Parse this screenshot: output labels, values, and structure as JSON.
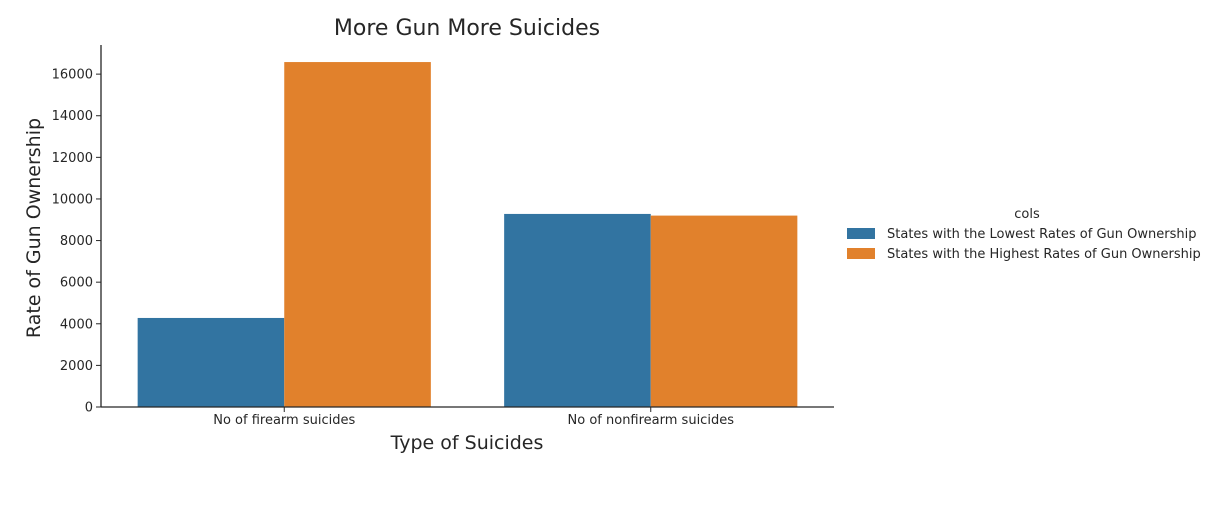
{
  "chart_data": {
    "type": "bar",
    "title": "More Gun More Suicides",
    "xlabel": "Type of Suicides",
    "ylabel": "Rate of Gun Ownership",
    "categories": [
      "No of firearm suicides",
      "No of nonfirearm suicides"
    ],
    "series": [
      {
        "name": "States with the Lowest Rates of Gun Ownership",
        "color": "#3274a1",
        "values": [
          4280,
          9280
        ]
      },
      {
        "name": "States with the Highest Rates of Gun Ownership",
        "color": "#e1812c",
        "values": [
          16580,
          9200
        ]
      }
    ],
    "ylim": [
      0,
      17400
    ],
    "yticks": [
      0,
      2000,
      4000,
      6000,
      8000,
      10000,
      12000,
      14000,
      16000
    ],
    "grid": false,
    "legend": {
      "title": "cols",
      "placement": "right-outside"
    }
  }
}
